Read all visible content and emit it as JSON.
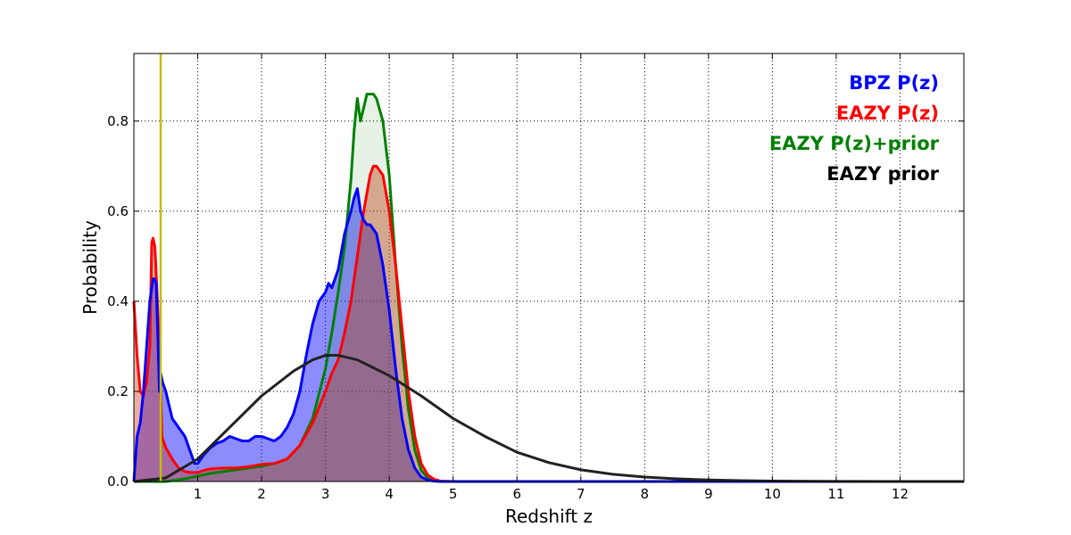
{
  "chart_data": {
    "type": "area",
    "xlabel": "Redshift z",
    "ylabel": "Probability",
    "xlim": [
      0,
      13
    ],
    "ylim": [
      0,
      0.95
    ],
    "x_ticks": [
      1,
      2,
      3,
      4,
      5,
      6,
      7,
      8,
      9,
      10,
      11,
      12
    ],
    "y_ticks": [
      0.0,
      0.2,
      0.4,
      0.6,
      0.8
    ],
    "x_tick_labels": [
      "1",
      "2",
      "3",
      "4",
      "5",
      "6",
      "7",
      "8",
      "9",
      "10",
      "11",
      "12"
    ],
    "y_tick_labels": [
      "0.0",
      "0.2",
      "0.4",
      "0.6",
      "0.8"
    ],
    "grid": true,
    "legend_position": "top-right",
    "vertical_line": {
      "x": 0.42,
      "color": "#bfbf00"
    },
    "series": [
      {
        "name": "BPZ P(z)",
        "color": "#0000ff",
        "fill": "#0000ff",
        "fill_opacity": 0.45,
        "x": [
          0,
          0.05,
          0.1,
          0.15,
          0.2,
          0.25,
          0.3,
          0.32,
          0.35,
          0.38,
          0.4,
          0.42,
          0.45,
          0.5,
          0.55,
          0.6,
          0.7,
          0.8,
          0.9,
          0.95,
          1.0,
          1.1,
          1.2,
          1.3,
          1.4,
          1.5,
          1.6,
          1.7,
          1.8,
          1.9,
          2.0,
          2.1,
          2.2,
          2.3,
          2.4,
          2.5,
          2.6,
          2.7,
          2.8,
          2.9,
          3.0,
          3.05,
          3.1,
          3.2,
          3.3,
          3.4,
          3.45,
          3.5,
          3.55,
          3.6,
          3.65,
          3.7,
          3.8,
          3.9,
          4.0,
          4.1,
          4.2,
          4.3,
          4.4,
          4.5,
          4.6,
          4.7,
          4.8,
          5.0,
          6.0,
          13.0
        ],
        "y": [
          0,
          0.1,
          0.13,
          0.2,
          0.3,
          0.4,
          0.45,
          0.45,
          0.44,
          0.3,
          0.2,
          0.24,
          0.22,
          0.2,
          0.17,
          0.14,
          0.12,
          0.1,
          0.06,
          0.04,
          0.04,
          0.06,
          0.075,
          0.085,
          0.09,
          0.1,
          0.095,
          0.09,
          0.09,
          0.1,
          0.1,
          0.095,
          0.09,
          0.1,
          0.12,
          0.15,
          0.2,
          0.28,
          0.35,
          0.4,
          0.42,
          0.44,
          0.43,
          0.47,
          0.55,
          0.6,
          0.63,
          0.65,
          0.6,
          0.58,
          0.57,
          0.57,
          0.55,
          0.48,
          0.38,
          0.25,
          0.14,
          0.07,
          0.03,
          0.01,
          0.003,
          0.001,
          0,
          0,
          0,
          0
        ]
      },
      {
        "name": "EAZY P(z)",
        "color": "#ff0000",
        "fill": "#cc3311",
        "fill_opacity": 0.4,
        "x": [
          0,
          0.05,
          0.1,
          0.15,
          0.2,
          0.25,
          0.28,
          0.3,
          0.33,
          0.36,
          0.4,
          0.42,
          0.44,
          0.46,
          0.5,
          0.6,
          0.7,
          0.8,
          0.9,
          1.0,
          1.1,
          1.2,
          1.4,
          1.6,
          1.8,
          2.0,
          2.2,
          2.4,
          2.6,
          2.8,
          3.0,
          3.1,
          3.2,
          3.3,
          3.4,
          3.5,
          3.6,
          3.7,
          3.75,
          3.8,
          3.9,
          4.0,
          4.1,
          4.2,
          4.3,
          4.4,
          4.5,
          4.6,
          4.7,
          4.8,
          5.0,
          6.0,
          13.0
        ],
        "y": [
          0.4,
          0.28,
          0.2,
          0.19,
          0.22,
          0.3,
          0.53,
          0.54,
          0.52,
          0.43,
          0.3,
          0.2,
          0.1,
          0.09,
          0.075,
          0.05,
          0.03,
          0.022,
          0.02,
          0.02,
          0.025,
          0.028,
          0.03,
          0.03,
          0.033,
          0.038,
          0.04,
          0.05,
          0.08,
          0.13,
          0.2,
          0.24,
          0.27,
          0.33,
          0.4,
          0.5,
          0.6,
          0.68,
          0.7,
          0.7,
          0.68,
          0.6,
          0.48,
          0.34,
          0.2,
          0.1,
          0.04,
          0.015,
          0.005,
          0.001,
          0,
          0,
          0
        ]
      },
      {
        "name": "EAZY P(z)+prior",
        "color": "#008000",
        "fill": "#008000",
        "fill_opacity": 0.1,
        "x": [
          0,
          0.5,
          0.6,
          0.8,
          1.0,
          1.2,
          1.4,
          1.6,
          1.8,
          2.0,
          2.2,
          2.4,
          2.6,
          2.8,
          3.0,
          3.1,
          3.2,
          3.3,
          3.4,
          3.45,
          3.5,
          3.55,
          3.6,
          3.65,
          3.7,
          3.75,
          3.8,
          3.9,
          4.0,
          4.1,
          4.2,
          4.3,
          4.4,
          4.5,
          4.6,
          4.7,
          4.8,
          5.0,
          6.0,
          13.0
        ],
        "y": [
          0,
          0,
          0.002,
          0.006,
          0.012,
          0.018,
          0.022,
          0.026,
          0.03,
          0.034,
          0.04,
          0.05,
          0.08,
          0.14,
          0.25,
          0.33,
          0.42,
          0.52,
          0.67,
          0.78,
          0.85,
          0.8,
          0.83,
          0.86,
          0.86,
          0.86,
          0.85,
          0.8,
          0.68,
          0.48,
          0.3,
          0.16,
          0.07,
          0.025,
          0.008,
          0.002,
          0,
          0,
          0,
          0
        ]
      },
      {
        "name": "EAZY prior",
        "color": "#222222",
        "fill": "none",
        "fill_opacity": 0,
        "x": [
          0,
          0.5,
          1.0,
          1.5,
          2.0,
          2.5,
          2.8,
          3.0,
          3.2,
          3.5,
          4.0,
          4.5,
          5.0,
          5.5,
          6.0,
          6.5,
          7.0,
          7.5,
          8.0,
          8.5,
          9.0,
          9.5,
          10.0,
          11.0,
          12.0,
          13.0
        ],
        "y": [
          0,
          0.008,
          0.05,
          0.12,
          0.19,
          0.245,
          0.27,
          0.28,
          0.28,
          0.27,
          0.235,
          0.19,
          0.14,
          0.1,
          0.065,
          0.042,
          0.026,
          0.016,
          0.01,
          0.006,
          0.0035,
          0.002,
          0.001,
          0.0003,
          0.0001,
          0
        ]
      }
    ]
  }
}
